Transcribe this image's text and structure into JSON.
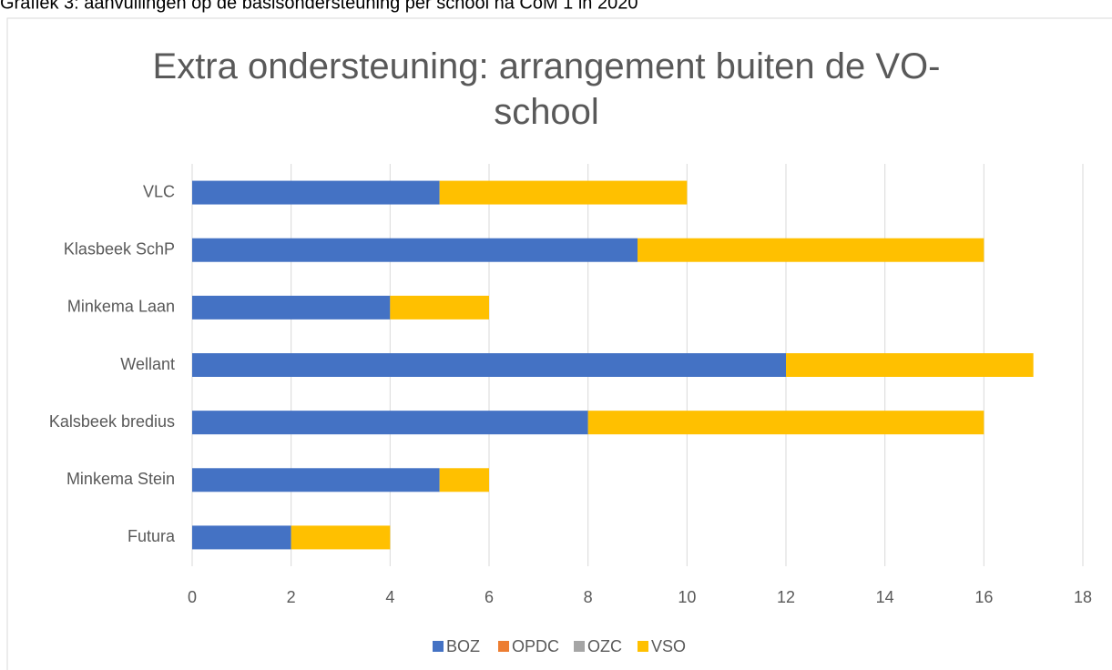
{
  "caption": "Grafiek 3: aanvullingen op de basisondersteuning per school na CoM 1 in 2020",
  "chart_data": {
    "type": "stacked_bar_horizontal",
    "title": "Extra ondersteuning: arrangement buiten de VO-school",
    "categories": [
      "VLC",
      "Klasbeek SchP",
      "Minkema Laan",
      "Wellant",
      "Kalsbeek bredius",
      "Minkema Stein",
      "Futura"
    ],
    "series": [
      {
        "name": "BOZ",
        "color": "#4472c4",
        "values": [
          5,
          9,
          4,
          12,
          8,
          5,
          2
        ]
      },
      {
        "name": "OPDC",
        "color": "#ed7d31",
        "values": [
          0,
          0,
          0,
          0,
          0,
          0,
          0
        ]
      },
      {
        "name": "OZC",
        "color": "#a5a5a5",
        "values": [
          0,
          0,
          0,
          0,
          0,
          0,
          0
        ]
      },
      {
        "name": "VSO",
        "color": "#ffc000",
        "values": [
          5,
          7,
          2,
          5,
          8,
          1,
          2
        ]
      }
    ],
    "xlim": [
      0,
      18
    ],
    "xticks": [
      0,
      2,
      4,
      6,
      8,
      10,
      12,
      14,
      16,
      18
    ],
    "grid": true,
    "legend": "bottom"
  }
}
